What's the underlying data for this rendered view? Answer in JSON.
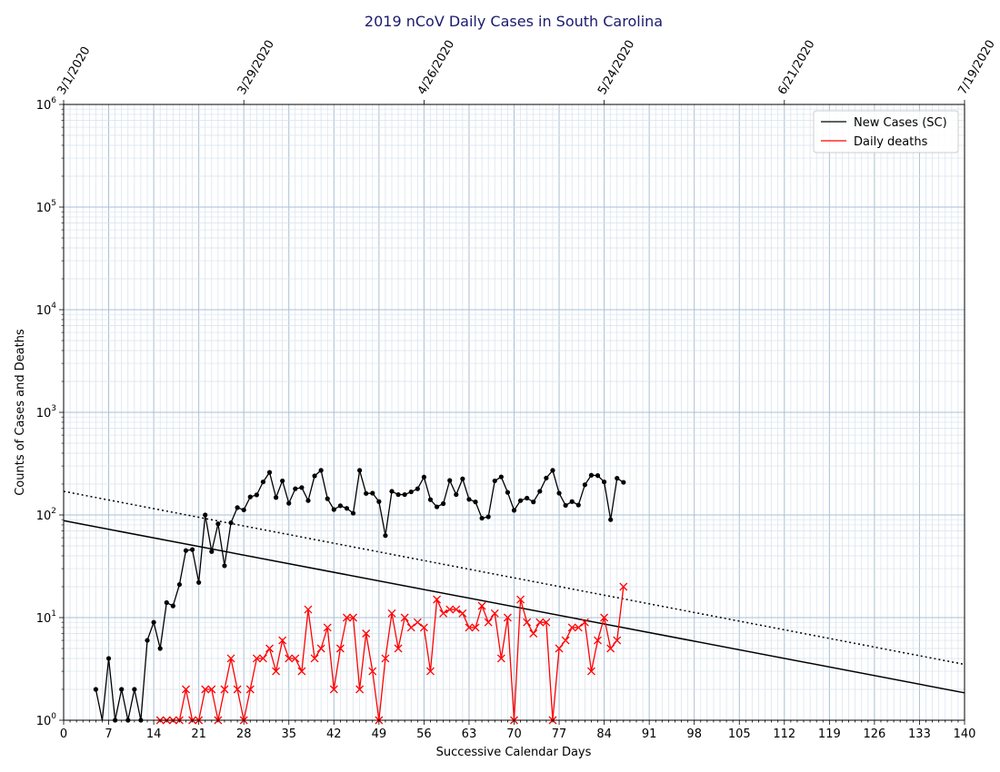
{
  "chart_data": {
    "type": "line",
    "title": "2019 nCoV Daily Cases in South Carolina",
    "xlabel": "Successive Calendar Days",
    "ylabel": "Counts of Cases and Deaths",
    "xlim": [
      0,
      140
    ],
    "ylim": [
      1,
      1000000
    ],
    "yscale": "log",
    "grid": true,
    "legend_position": "top-right",
    "x_ticks": [
      0,
      7,
      14,
      21,
      28,
      35,
      42,
      49,
      56,
      63,
      70,
      77,
      84,
      91,
      98,
      105,
      112,
      119,
      126,
      133,
      140
    ],
    "y_tick_exponents": [
      0,
      1,
      2,
      3,
      4,
      5,
      6
    ],
    "top_axis": {
      "tick_days": [
        0,
        28,
        56,
        84,
        112,
        140
      ],
      "tick_labels": [
        "3/1/2020",
        "3/29/2020",
        "4/26/2020",
        "5/24/2020",
        "6/21/2020",
        "7/19/2020"
      ]
    },
    "series": [
      {
        "name": "New Cases (SC)",
        "color": "#000000",
        "marker": "dot",
        "x": [
          5,
          6,
          7,
          8,
          9,
          10,
          11,
          12,
          13,
          14,
          15,
          16,
          17,
          18,
          19,
          20,
          21,
          22,
          23,
          24,
          25,
          26,
          27,
          28,
          29,
          30,
          31,
          32,
          33,
          34,
          35,
          36,
          37,
          38,
          39,
          40,
          41,
          42,
          43,
          44,
          45,
          46,
          47,
          48,
          49,
          50,
          51,
          52,
          53,
          54,
          55,
          56,
          57,
          58,
          59,
          60,
          61,
          62,
          63,
          64,
          65,
          66,
          67,
          68,
          69,
          70,
          71,
          72,
          73,
          74,
          75,
          76,
          77,
          78,
          79,
          80,
          81,
          82,
          83,
          84,
          85,
          86,
          87
        ],
        "y": [
          2,
          0,
          4,
          1,
          2,
          1,
          2,
          1,
          6,
          9,
          5,
          14,
          13,
          21,
          45,
          46,
          22,
          100,
          44,
          82,
          32,
          84,
          118,
          112,
          150,
          157,
          210,
          260,
          148,
          215,
          130,
          180,
          185,
          138,
          240,
          272,
          144,
          113,
          123,
          116,
          104,
          272,
          162,
          163,
          135,
          63,
          170,
          158,
          158,
          168,
          180,
          234,
          141,
          120,
          129,
          217,
          158,
          225,
          142,
          134,
          93,
          96,
          215,
          235,
          166,
          111,
          138,
          146,
          134,
          170,
          229,
          272,
          163,
          124,
          135,
          125,
          197,
          244,
          242,
          210,
          90,
          228,
          208
        ]
      },
      {
        "name": "Daily deaths",
        "color": "#ff0000",
        "marker": "x",
        "x": [
          15,
          16,
          17,
          18,
          19,
          20,
          21,
          22,
          23,
          24,
          25,
          26,
          27,
          28,
          29,
          30,
          31,
          32,
          33,
          34,
          35,
          36,
          37,
          38,
          39,
          40,
          41,
          42,
          43,
          44,
          45,
          46,
          47,
          48,
          49,
          50,
          51,
          52,
          53,
          54,
          55,
          56,
          57,
          58,
          59,
          60,
          61,
          62,
          63,
          64,
          65,
          66,
          67,
          68,
          69,
          70,
          71,
          72,
          73,
          74,
          75,
          76,
          77,
          78,
          79,
          80,
          81,
          82,
          83,
          84,
          85,
          86,
          87
        ],
        "y": [
          1,
          1,
          1,
          1,
          2,
          1,
          1,
          2,
          2,
          1,
          2,
          4,
          2,
          1,
          2,
          4,
          4,
          5,
          3,
          6,
          4,
          4,
          3,
          12,
          4,
          5,
          8,
          2,
          5,
          10,
          10,
          2,
          7,
          3,
          1,
          4,
          11,
          5,
          10,
          8,
          9,
          8,
          3,
          15,
          11,
          12,
          12,
          11,
          8,
          8,
          13,
          9,
          11,
          4,
          10,
          1,
          15,
          9,
          7,
          9,
          9,
          1,
          5,
          6,
          8,
          8,
          9,
          3,
          6,
          10,
          5,
          6,
          20
        ]
      },
      {
        "name": "",
        "color": "#000000",
        "style": "solid",
        "x": [
          0,
          140
        ],
        "y": [
          88,
          1.85
        ]
      },
      {
        "name": "",
        "color": "#000000",
        "style": "dotted",
        "x": [
          0,
          140
        ],
        "y": [
          170,
          3.5
        ]
      }
    ]
  }
}
